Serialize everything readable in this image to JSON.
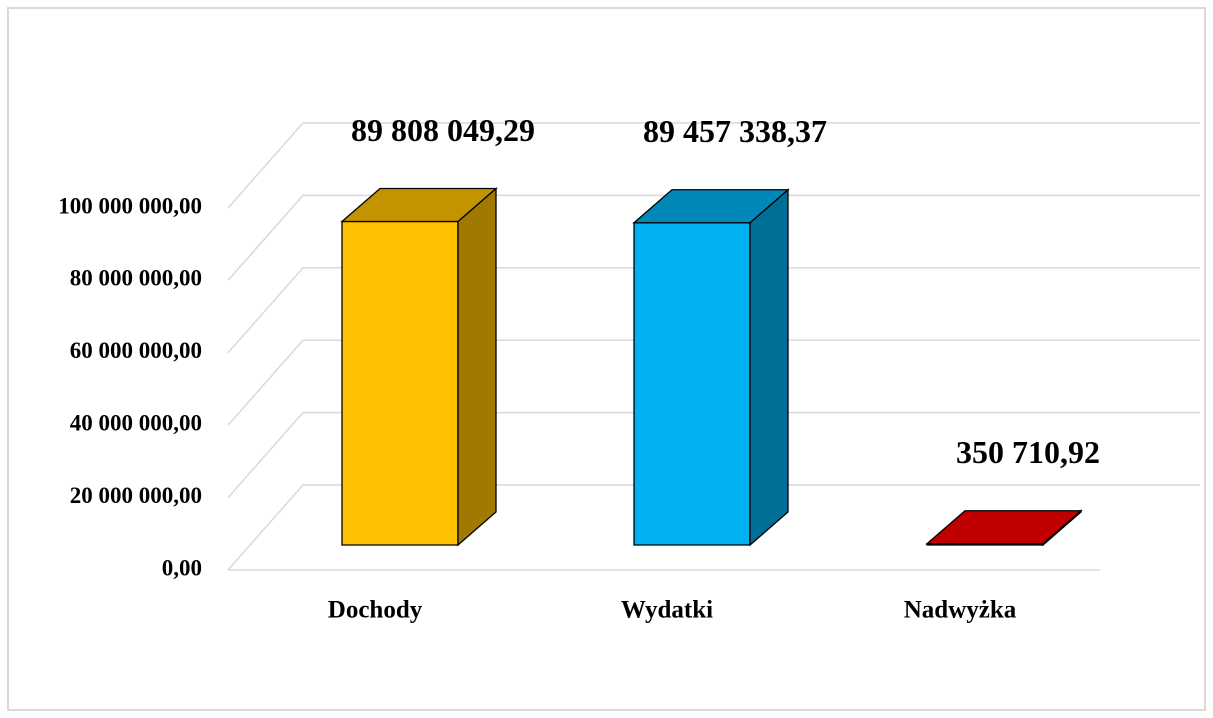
{
  "chart_data": {
    "type": "bar3d",
    "categories": [
      "Dochody",
      "Wydatki",
      "Nadwyżka"
    ],
    "values": [
      89808049.29,
      89457338.37,
      350710.92
    ],
    "value_labels": [
      "89 808 049,29",
      "89 457 338,37",
      "350 710,92"
    ],
    "colors": [
      "#FFC000",
      "#00B0F0",
      "#C00000"
    ],
    "ylim": [
      0,
      100000000
    ],
    "yticks": [
      {
        "value": 0,
        "label": "0,00"
      },
      {
        "value": 20000000,
        "label": "20 000 000,00"
      },
      {
        "value": 40000000,
        "label": "40 000 000,00"
      },
      {
        "value": 60000000,
        "label": "60 000 000,00"
      },
      {
        "value": 80000000,
        "label": "80 000 000,00"
      },
      {
        "value": 100000000,
        "label": "100 000 000,00"
      }
    ],
    "grid": true
  }
}
